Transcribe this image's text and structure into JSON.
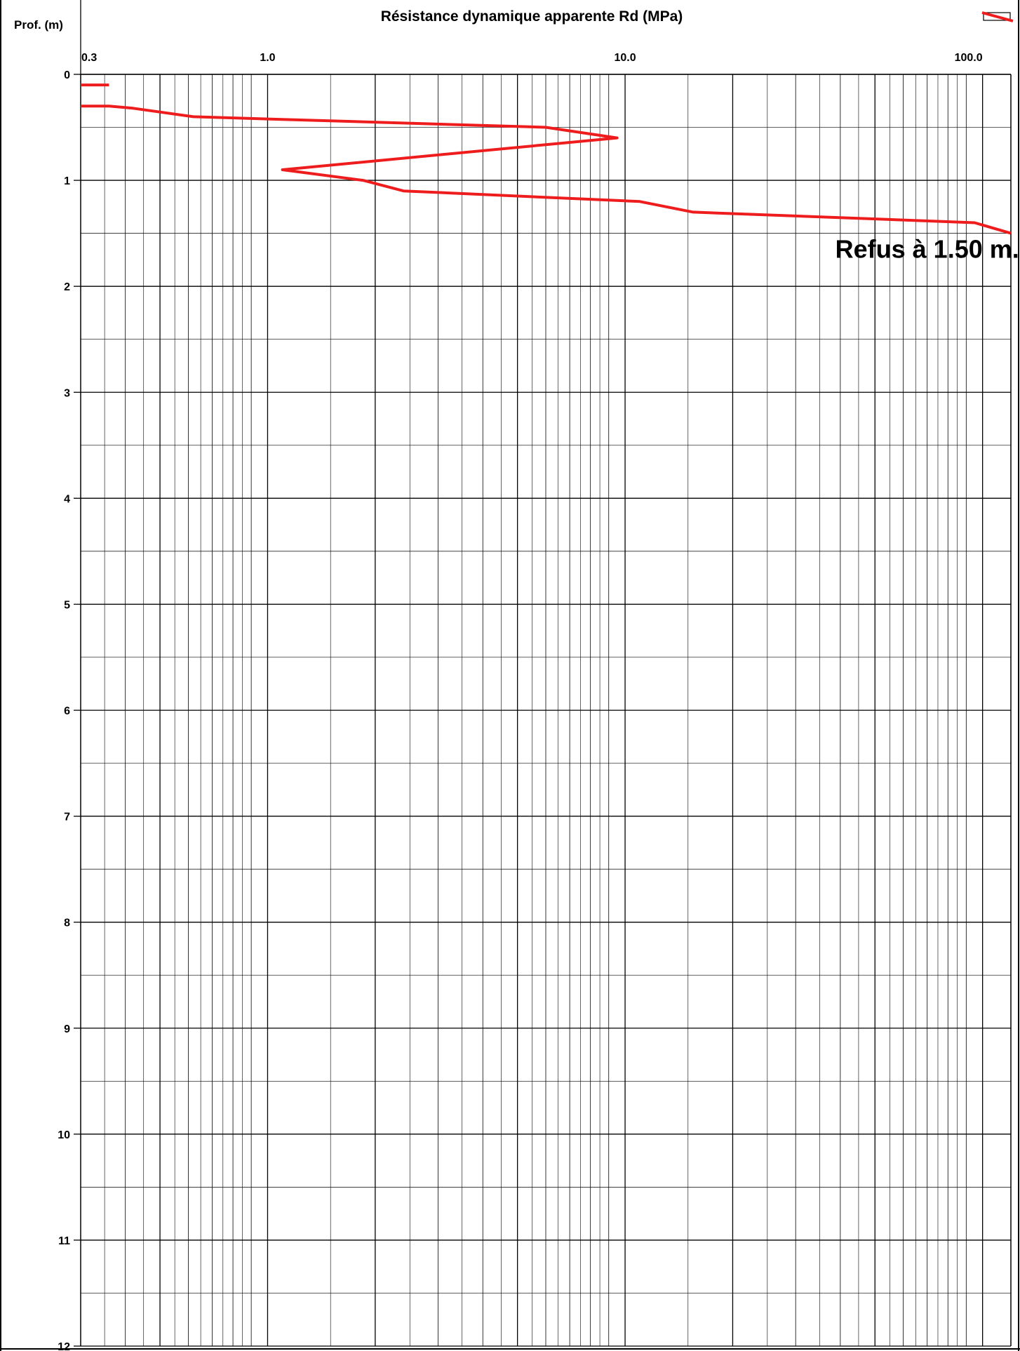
{
  "chart_data": {
    "type": "line",
    "title": "Résistance dynamique apparente Rd (MPa)",
    "ylabel": "Prof. (m)",
    "xlabel": "",
    "x_scale": "log",
    "xlim": [
      0.3,
      120
    ],
    "ylim": [
      0,
      12
    ],
    "y_inverted": true,
    "x_tick_labels": [
      "0.3",
      "1.0",
      "10.0",
      "100.0"
    ],
    "x_tick_values": [
      0.3,
      1.0,
      10.0,
      100.0
    ],
    "y_ticks": [
      0,
      1,
      2,
      3,
      4,
      5,
      6,
      7,
      8,
      9,
      10,
      11,
      12
    ],
    "grid": true,
    "legend": "top-right",
    "series": [
      {
        "color": "#ee1c1c",
        "segments": [
          [
            [
              0.3,
              0.1
            ],
            [
              0.36,
              0.1
            ]
          ],
          [
            [
              0.3,
              0.3
            ],
            [
              0.36,
              0.3
            ],
            [
              0.42,
              0.32
            ],
            [
              0.62,
              0.4
            ],
            [
              6.0,
              0.5
            ],
            [
              9.5,
              0.6
            ],
            [
              1.1,
              0.9
            ],
            [
              1.85,
              1.0
            ],
            [
              2.4,
              1.1
            ],
            [
              11.0,
              1.2
            ],
            [
              15.5,
              1.3
            ],
            [
              95.0,
              1.4
            ],
            [
              120.0,
              1.5
            ]
          ]
        ]
      }
    ],
    "annotations": [
      {
        "text": "Refus à 1.50 m.",
        "x": 70,
        "y": 1.65
      }
    ]
  }
}
